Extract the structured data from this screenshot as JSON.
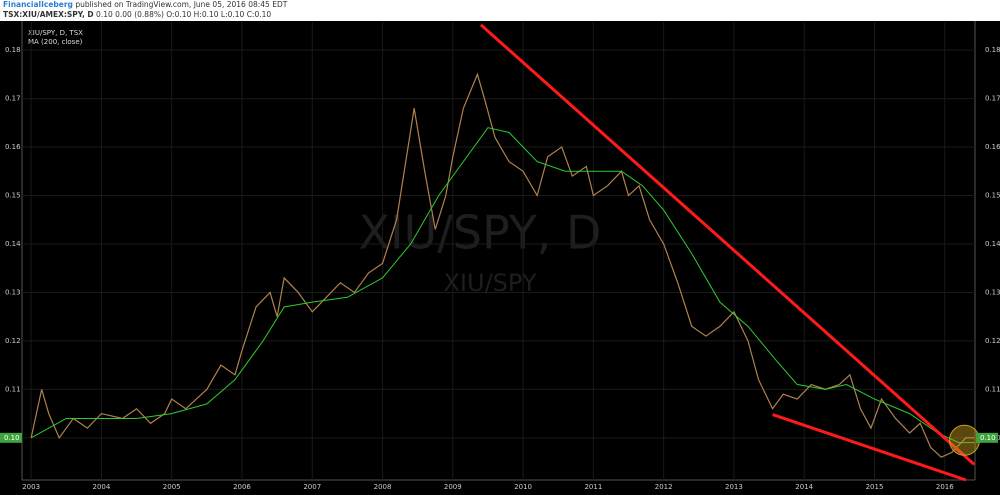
{
  "header": {
    "author": "FinancialIceberg",
    "published": "published on TradingView.com, June 05, 2016 08:45 EDT",
    "symbol": "TSX:XIU/AMEX:SPY, D",
    "quote": "0.10 0.00 (0.88%) O:0.10 H:0.10 L:0.10 C:0.10"
  },
  "chart_data": {
    "type": "line",
    "legend": [
      "XIU/SPY, D, TSX",
      "MA (200, close)"
    ],
    "watermark": [
      "XIU/SPY, D",
      "XIU/SPY"
    ],
    "xlim": [
      2002.87,
      2016.43
    ],
    "ylim": [
      0.0913,
      0.1858
    ],
    "xticks": [
      2003,
      2004,
      2005,
      2006,
      2007,
      2008,
      2009,
      2010,
      2011,
      2012,
      2013,
      2014,
      2015,
      2016
    ],
    "yticks": [
      {
        "value": 0.1,
        "label": "0.10"
      },
      {
        "value": 0.11,
        "label": "0.11"
      },
      {
        "value": 0.12,
        "label": "0.12"
      },
      {
        "value": 0.13,
        "label": "0.13"
      },
      {
        "value": 0.14,
        "label": "0.14"
      },
      {
        "value": 0.15,
        "label": "0.15"
      },
      {
        "value": 0.16,
        "label": "0.16"
      },
      {
        "value": 0.17,
        "label": "0.17"
      },
      {
        "value": 0.18,
        "label": "0.18"
      }
    ],
    "last_value": {
      "value": 0.1,
      "label": "0.10"
    },
    "series": [
      {
        "color": "#b0824e",
        "x": [
          2003.0,
          2003.15,
          2003.25,
          2003.4,
          2003.6,
          2003.8,
          2004.0,
          2004.3,
          2004.5,
          2004.7,
          2004.9,
          2005.0,
          2005.2,
          2005.5,
          2005.7,
          2005.9,
          2006.0,
          2006.2,
          2006.4,
          2006.5,
          2006.6,
          2006.8,
          2007.0,
          2007.2,
          2007.4,
          2007.6,
          2007.8,
          2008.0,
          2008.2,
          2008.45,
          2008.6,
          2008.75,
          2008.9,
          2009.0,
          2009.15,
          2009.35,
          2009.45,
          2009.6,
          2009.8,
          2010.0,
          2010.2,
          2010.35,
          2010.55,
          2010.7,
          2010.9,
          2011.0,
          2011.2,
          2011.4,
          2011.5,
          2011.65,
          2011.8,
          2012.0,
          2012.2,
          2012.4,
          2012.6,
          2012.8,
          2013.0,
          2013.2,
          2013.35,
          2013.55,
          2013.7,
          2013.9,
          2014.1,
          2014.3,
          2014.5,
          2014.65,
          2014.8,
          2014.95,
          2015.1,
          2015.3,
          2015.5,
          2015.65,
          2015.8,
          2015.95,
          2016.1,
          2016.3,
          2016.42
        ],
        "values": [
          0.1,
          0.11,
          0.105,
          0.1,
          0.104,
          0.102,
          0.105,
          0.104,
          0.106,
          0.103,
          0.105,
          0.108,
          0.106,
          0.11,
          0.115,
          0.113,
          0.118,
          0.127,
          0.13,
          0.125,
          0.133,
          0.13,
          0.126,
          0.129,
          0.132,
          0.13,
          0.134,
          0.136,
          0.145,
          0.168,
          0.155,
          0.143,
          0.15,
          0.158,
          0.168,
          0.175,
          0.17,
          0.162,
          0.157,
          0.155,
          0.15,
          0.158,
          0.16,
          0.154,
          0.156,
          0.15,
          0.152,
          0.155,
          0.15,
          0.152,
          0.145,
          0.14,
          0.132,
          0.123,
          0.121,
          0.123,
          0.126,
          0.12,
          0.112,
          0.106,
          0.109,
          0.108,
          0.111,
          0.11,
          0.111,
          0.113,
          0.106,
          0.102,
          0.108,
          0.104,
          0.101,
          0.103,
          0.098,
          0.096,
          0.097,
          0.1,
          0.1
        ]
      },
      {
        "color": "#2ecc2e",
        "x": [
          2003.0,
          2003.5,
          2004.0,
          2004.5,
          2005.0,
          2005.5,
          2005.9,
          2006.3,
          2006.6,
          2007.0,
          2007.5,
          2008.0,
          2008.4,
          2008.8,
          2009.2,
          2009.5,
          2009.8,
          2010.2,
          2010.6,
          2011.0,
          2011.4,
          2011.7,
          2012.0,
          2012.4,
          2012.8,
          2013.2,
          2013.6,
          2013.9,
          2014.3,
          2014.6,
          2015.0,
          2015.5,
          2015.9,
          2016.2,
          2016.42
        ],
        "values": [
          0.1,
          0.104,
          0.104,
          0.104,
          0.105,
          0.107,
          0.112,
          0.12,
          0.127,
          0.128,
          0.129,
          0.133,
          0.14,
          0.15,
          0.158,
          0.164,
          0.163,
          0.157,
          0.155,
          0.155,
          0.155,
          0.152,
          0.147,
          0.138,
          0.128,
          0.123,
          0.116,
          0.111,
          0.11,
          0.111,
          0.108,
          0.105,
          0.101,
          0.099,
          0.099
        ]
      }
    ],
    "drawings": [
      {
        "color": "#ff1a1a",
        "x": [
          2009.4,
          2016.42
        ],
        "y": [
          0.1852,
          0.0945
        ]
      },
      {
        "color": "#ff1a1a",
        "x": [
          2013.55,
          2016.3
        ],
        "y": [
          0.1048,
          0.0913
        ]
      }
    ],
    "highlight": {
      "x": 2016.28,
      "y": 0.0995,
      "color": "#c8a020"
    }
  }
}
